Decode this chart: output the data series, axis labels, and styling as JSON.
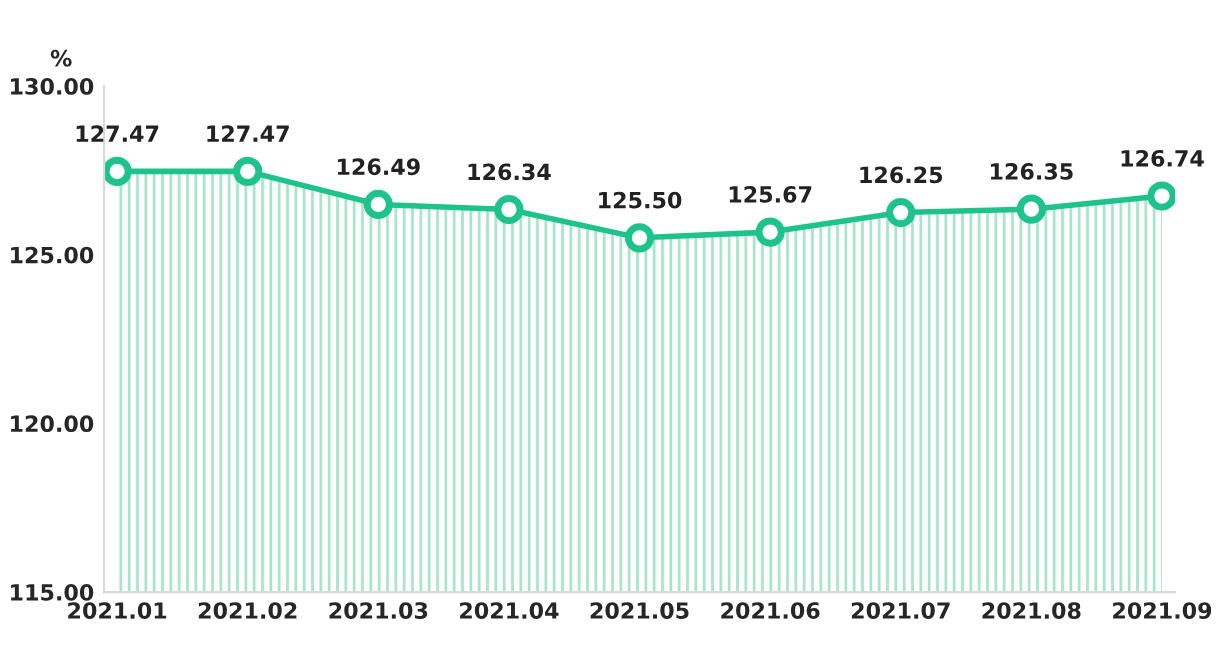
{
  "chart_data": {
    "type": "area",
    "ylabel": "%",
    "categories": [
      "2021.01",
      "2021.02",
      "2021.03",
      "2021.04",
      "2021.05",
      "2021.06",
      "2021.07",
      "2021.08",
      "2021.09"
    ],
    "series": [
      {
        "color": "#1ec38c",
        "values": [
          127.47,
          127.47,
          126.49,
          126.34,
          125.5,
          125.67,
          126.25,
          126.35,
          126.74
        ],
        "value_labels": [
          "127.47",
          "127.47",
          "126.49",
          "126.34",
          "125.50",
          "125.67",
          "126.25",
          "126.35",
          "126.74"
        ]
      }
    ],
    "ylim": [
      115,
      130
    ],
    "yticks": [
      {
        "value": 115,
        "label": "115.00"
      },
      {
        "value": 120,
        "label": "120.00"
      },
      {
        "value": 125,
        "label": "125.00"
      },
      {
        "value": 130,
        "label": "130.00"
      }
    ],
    "marker": "circle",
    "grid": false,
    "legend": false
  }
}
